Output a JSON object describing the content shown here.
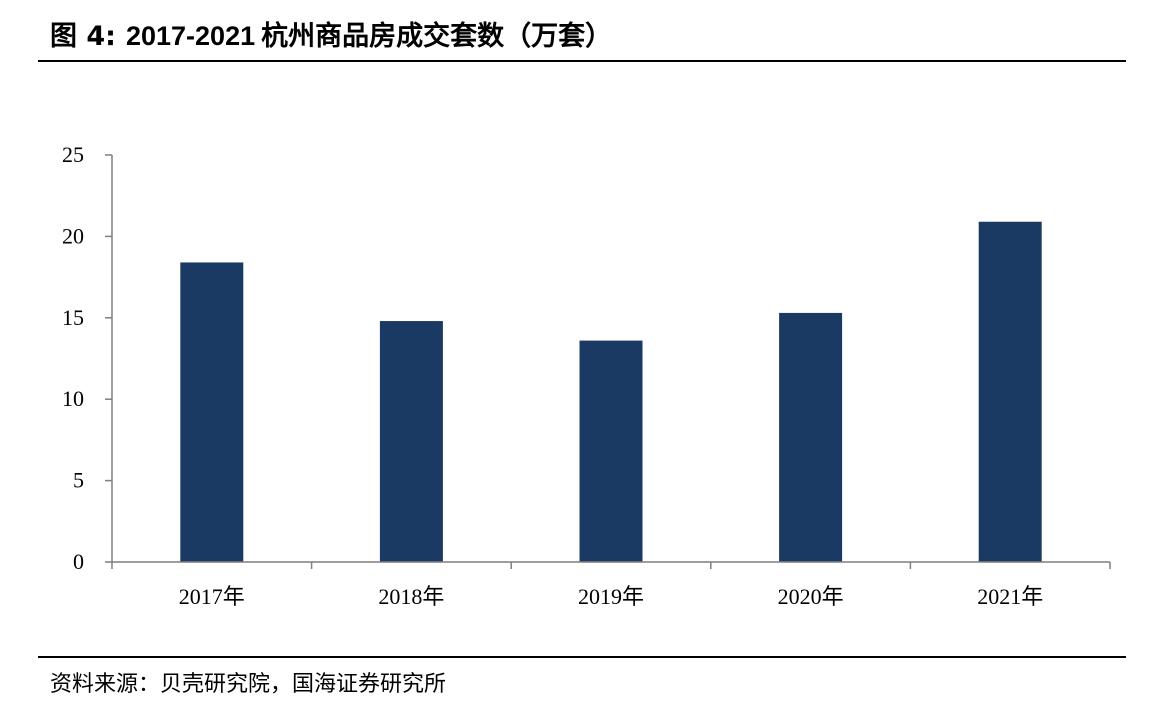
{
  "header": {
    "figure_label": "图 4:",
    "title_range": "2017-2021",
    "title_text": "杭州商品房成交套数（万套）"
  },
  "footer": {
    "source": "资料来源：贝壳研究院，国海证券研究所"
  },
  "chart_data": {
    "type": "bar",
    "title": "2017-2021 杭州商品房成交套数（万套）",
    "xlabel": "",
    "ylabel": "",
    "categories": [
      "2017年",
      "2018年",
      "2019年",
      "2020年",
      "2021年"
    ],
    "values": [
      18.4,
      14.8,
      13.6,
      15.3,
      20.9
    ],
    "ylim": [
      0,
      25
    ],
    "yticks": [
      0,
      5,
      10,
      15,
      20,
      25
    ],
    "grid": false,
    "legend": "none",
    "bar_color": "#1b3a63"
  }
}
